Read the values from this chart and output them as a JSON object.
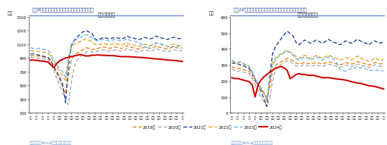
{
  "title_left": "图表9：近半月钢材表需再度回落，弱于季节规律",
  "title_right": "图表10：近半月螺纹钢表需同样有所回落，弱于季节规律",
  "source": "资料来源：Wind，国盛证券研究所",
  "chart1_title": "钢材表需合计",
  "chart2_title": "螺纹钢表观需求",
  "chart1_ylabel": "万吨",
  "chart2_ylabel": "万吨",
  "xlabel": "周",
  "chart1_ylim": [
    100,
    1500
  ],
  "chart2_ylim": [
    0,
    600
  ],
  "chart1_yticks": [
    100,
    300,
    500,
    700,
    900,
    1100,
    1300,
    1500
  ],
  "chart2_yticks": [
    0,
    100,
    200,
    300,
    400,
    500,
    600
  ],
  "weeks": 53,
  "legend_labels": [
    "2019年",
    "2020年",
    "2021年",
    "2022年",
    "2023年",
    "2024年"
  ],
  "colors": [
    "#E8821A",
    "#A9A9A9",
    "#1F3E8F",
    "#DAA520",
    "#6BB3E8",
    "#CC0000"
  ],
  "linestyles": [
    "--",
    "--",
    "--",
    "--",
    "--",
    "-"
  ],
  "linewidths": [
    1.0,
    1.0,
    1.0,
    1.0,
    1.0,
    1.5
  ],
  "header_bg": "#D9EAF7",
  "header_text_color": "#1F3E8F",
  "source_text_color": "#6699CC",
  "chart1_2019": [
    940,
    930,
    925,
    930,
    920,
    910,
    900,
    850,
    760,
    680,
    580,
    480,
    380,
    650,
    870,
    950,
    970,
    1000,
    1020,
    1050,
    1040,
    1020,
    1030,
    1040,
    1050,
    1060,
    1050,
    1040,
    1050,
    1060,
    1050,
    1040,
    1050,
    1080,
    1060,
    1050,
    1040,
    1030,
    1040,
    1060,
    1050,
    1040,
    1050,
    1080,
    1060,
    1050,
    1040,
    1030,
    1050,
    1060,
    1050,
    1040,
    1050
  ],
  "chart1_2020": [
    910,
    900,
    895,
    900,
    890,
    880,
    870,
    820,
    720,
    600,
    500,
    400,
    300,
    220,
    550,
    780,
    870,
    920,
    960,
    980,
    1000,
    990,
    980,
    1000,
    1010,
    1020,
    1010,
    1000,
    1010,
    1020,
    1010,
    1000,
    1010,
    1040,
    1020,
    1010,
    1000,
    990,
    1000,
    1020,
    1010,
    1000,
    1010,
    1040,
    1020,
    1010,
    1000,
    990,
    1010,
    1020,
    1010,
    1000,
    1010
  ],
  "chart1_2021": [
    960,
    960,
    950,
    940,
    930,
    920,
    910,
    860,
    770,
    700,
    620,
    520,
    250,
    780,
    1080,
    1160,
    1200,
    1250,
    1280,
    1300,
    1280,
    1260,
    1180,
    1160,
    1180,
    1200,
    1190,
    1180,
    1190,
    1200,
    1190,
    1180,
    1190,
    1220,
    1200,
    1190,
    1180,
    1170,
    1180,
    1200,
    1190,
    1180,
    1190,
    1220,
    1200,
    1190,
    1180,
    1170,
    1190,
    1200,
    1190,
    1180,
    1190
  ],
  "chart1_2022": [
    1010,
    1000,
    995,
    1000,
    990,
    980,
    970,
    920,
    830,
    760,
    700,
    640,
    560,
    880,
    1060,
    1100,
    1120,
    1140,
    1160,
    1180,
    1160,
    1140,
    1100,
    1090,
    1100,
    1110,
    1100,
    1090,
    1100,
    1110,
    1100,
    1090,
    1100,
    1120,
    1100,
    1090,
    1080,
    1070,
    1080,
    1100,
    1090,
    1080,
    1090,
    1120,
    1100,
    1090,
    1080,
    1070,
    1090,
    1100,
    1090,
    1080,
    1090
  ],
  "chart1_2023": [
    1050,
    1040,
    1035,
    1040,
    1030,
    1020,
    1010,
    960,
    870,
    800,
    750,
    700,
    620,
    900,
    1100,
    1150,
    1180,
    1200,
    1220,
    1240,
    1220,
    1200,
    1160,
    1150,
    1160,
    1170,
    1160,
    1150,
    1160,
    1170,
    1160,
    1150,
    1160,
    1180,
    1160,
    1150,
    1140,
    1130,
    1100,
    1060,
    1050,
    1080,
    1100,
    1120,
    1100,
    1100,
    1090,
    1060,
    1060,
    1070,
    1060,
    1080,
    1100
  ],
  "chart1_2024": [
    870,
    870,
    865,
    860,
    855,
    850,
    840,
    800,
    760,
    820,
    860,
    880,
    900,
    910,
    920,
    930,
    940,
    950,
    940,
    930,
    930,
    940,
    940,
    945,
    940,
    940,
    935,
    935,
    935,
    930,
    925,
    920,
    920,
    920,
    918,
    915,
    912,
    910,
    908,
    905,
    900,
    895,
    890,
    888,
    885,
    880,
    875,
    870,
    868,
    865,
    860,
    855,
    850
  ],
  "chart2_2019": [
    290,
    280,
    275,
    280,
    270,
    265,
    260,
    230,
    195,
    175,
    150,
    120,
    100,
    160,
    260,
    295,
    310,
    320,
    330,
    340,
    335,
    325,
    310,
    305,
    310,
    315,
    310,
    305,
    310,
    315,
    310,
    305,
    310,
    320,
    315,
    310,
    305,
    300,
    305,
    315,
    310,
    305,
    310,
    320,
    315,
    310,
    305,
    300,
    305,
    315,
    310,
    305,
    310
  ],
  "chart2_2020": [
    275,
    265,
    260,
    265,
    255,
    250,
    245,
    215,
    175,
    140,
    100,
    70,
    40,
    90,
    200,
    265,
    290,
    305,
    315,
    325,
    320,
    310,
    295,
    290,
    295,
    300,
    295,
    290,
    295,
    300,
    295,
    290,
    295,
    305,
    300,
    295,
    290,
    285,
    290,
    300,
    295,
    290,
    295,
    305,
    300,
    295,
    290,
    285,
    290,
    300,
    295,
    290,
    295
  ],
  "chart2_2021": [
    310,
    310,
    305,
    300,
    295,
    285,
    275,
    250,
    210,
    175,
    135,
    90,
    40,
    230,
    370,
    415,
    440,
    465,
    490,
    510,
    495,
    480,
    440,
    425,
    440,
    455,
    445,
    435,
    445,
    455,
    445,
    435,
    445,
    460,
    450,
    440,
    435,
    425,
    435,
    450,
    440,
    435,
    445,
    460,
    450,
    440,
    435,
    425,
    440,
    450,
    440,
    435,
    445
  ],
  "chart2_2022": [
    325,
    315,
    310,
    315,
    305,
    295,
    285,
    255,
    215,
    185,
    155,
    120,
    75,
    195,
    310,
    345,
    360,
    370,
    380,
    390,
    380,
    370,
    350,
    340,
    350,
    360,
    350,
    340,
    350,
    360,
    350,
    340,
    350,
    360,
    355,
    345,
    340,
    330,
    335,
    345,
    340,
    330,
    340,
    355,
    345,
    335,
    330,
    320,
    330,
    345,
    335,
    325,
    335
  ],
  "chart2_2023": [
    330,
    320,
    315,
    320,
    310,
    300,
    290,
    260,
    215,
    185,
    160,
    130,
    85,
    195,
    300,
    330,
    350,
    365,
    375,
    385,
    375,
    360,
    340,
    330,
    340,
    350,
    340,
    330,
    340,
    350,
    340,
    330,
    340,
    350,
    345,
    335,
    310,
    270,
    265,
    260,
    270,
    280,
    280,
    290,
    280,
    285,
    275,
    265,
    265,
    270,
    265,
    265,
    260
  ],
  "chart2_2024": [
    220,
    215,
    215,
    210,
    205,
    200,
    195,
    175,
    100,
    175,
    205,
    225,
    240,
    255,
    265,
    280,
    285,
    290,
    280,
    265,
    215,
    225,
    240,
    245,
    240,
    240,
    235,
    235,
    235,
    230,
    225,
    220,
    220,
    220,
    218,
    215,
    212,
    210,
    208,
    205,
    200,
    195,
    190,
    188,
    185,
    180,
    175,
    170,
    168,
    165,
    160,
    155,
    150
  ],
  "x_tick_positions": [
    1,
    3,
    5,
    7,
    9,
    11,
    13,
    15,
    17,
    19,
    21,
    23,
    25,
    27,
    29,
    31,
    33,
    35,
    37,
    39,
    41,
    43,
    45,
    47,
    49,
    51,
    53
  ],
  "x_tick_labels": [
    "一",
    "三",
    "五",
    "七",
    "九",
    "十一",
    "十三",
    "十五",
    "十七",
    "十九",
    "二一",
    "二三",
    "二五",
    "二七",
    "二九",
    "三一",
    "三三",
    "三五",
    "三七",
    "三九",
    "四一",
    "四三",
    "四五",
    "四七",
    "四九",
    "五一",
    "周"
  ]
}
